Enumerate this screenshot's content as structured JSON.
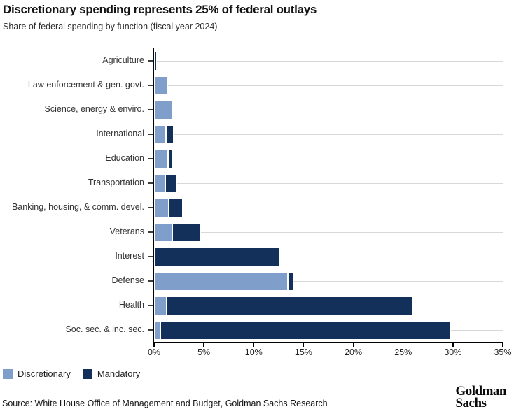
{
  "header": {
    "title": "Discretionary spending represents 25% of federal outlays",
    "subtitle": "Share of federal spending by function (fiscal year 2024)"
  },
  "legend": {
    "items": [
      {
        "label": "Discretionary",
        "color": "#7f9fca"
      },
      {
        "label": "Mandatory",
        "color": "#12305a"
      }
    ]
  },
  "footer": {
    "source": "Source: White House Office of Management and Budget, Goldman Sachs Research",
    "logo_line1": "Goldman",
    "logo_line2": "Sachs"
  },
  "chart_data": {
    "type": "bar",
    "orientation": "horizontal",
    "stacked": true,
    "title": "Discretionary spending represents 25% of federal outlays",
    "subtitle": "Share of federal spending by function (fiscal year 2024)",
    "categories": [
      "Agriculture",
      "Law enforcement & gen. govt.",
      "Science, energy & enviro.",
      "International",
      "Education",
      "Transportation",
      "Banking, housing, & comm. devel.",
      "Veterans",
      "Interest",
      "Defense",
      "Health",
      "Soc. sec. & inc. sec."
    ],
    "series": [
      {
        "name": "Discretionary",
        "color": "#7f9fca",
        "values": [
          0.0,
          1.4,
          1.8,
          1.2,
          1.4,
          1.1,
          1.5,
          1.8,
          0.0,
          13.4,
          1.3,
          0.6
        ]
      },
      {
        "name": "Mandatory",
        "color": "#12305a",
        "values": [
          0.3,
          0.0,
          0.2,
          0.8,
          0.5,
          1.2,
          1.4,
          2.9,
          12.6,
          0.6,
          24.7,
          29.2
        ]
      }
    ],
    "xlim": [
      0,
      35
    ],
    "x_ticks": [
      "0%",
      "5%",
      "10%",
      "15%",
      "20%",
      "25%",
      "30%",
      "35%"
    ],
    "x_tick_values": [
      0,
      5,
      10,
      15,
      20,
      25,
      30,
      35
    ],
    "grid": "horizontal",
    "legend_position": "bottom-left"
  }
}
